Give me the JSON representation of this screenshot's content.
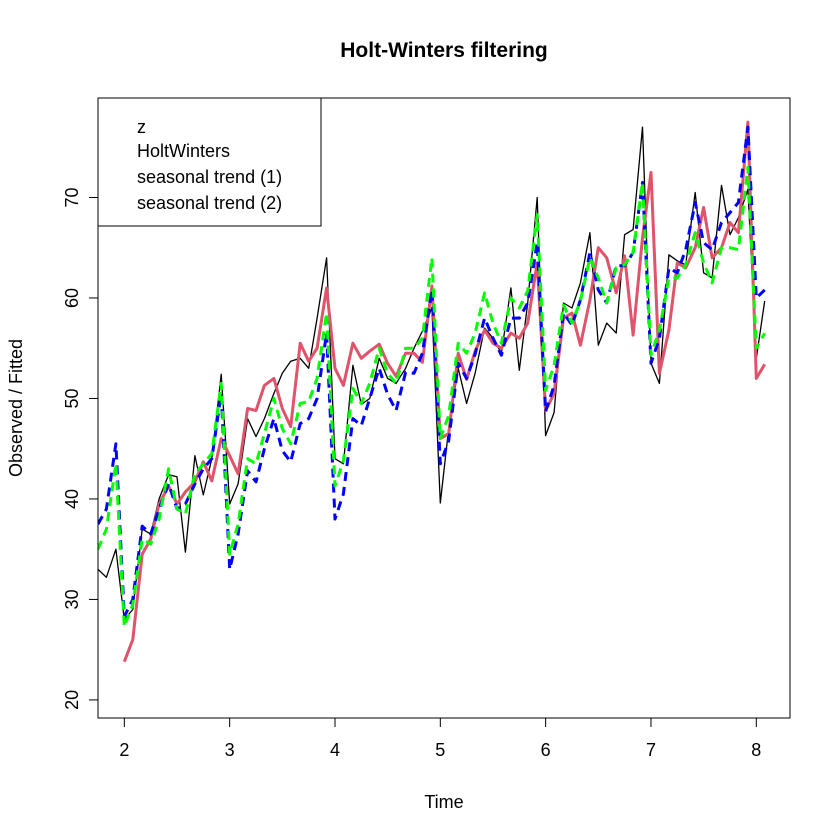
{
  "chart_data": {
    "type": "line",
    "title": "Holt-Winters filtering",
    "xlabel": "Time",
    "ylabel": "Observed / Fitted",
    "xlim": [
      1.75,
      8.32
    ],
    "ylim": [
      18.2,
      79.9
    ],
    "xticks": [
      2,
      3,
      4,
      5,
      6,
      7,
      8
    ],
    "yticks": [
      20,
      30,
      40,
      50,
      60,
      70
    ],
    "grid": false,
    "legend_position": "top-left",
    "legend": [
      "z",
      "HoltWinters",
      "seasonal trend (1)",
      "seasonal trend (2)"
    ],
    "series": [
      {
        "name": "z",
        "color": "#000000",
        "style": "solid",
        "width": 1.3,
        "x": [
          1.75,
          1.83,
          1.92,
          2.0,
          2.08,
          2.17,
          2.25,
          2.33,
          2.42,
          2.5,
          2.58,
          2.67,
          2.75,
          2.83,
          2.92,
          3.0,
          3.08,
          3.17,
          3.25,
          3.33,
          3.42,
          3.5,
          3.58,
          3.67,
          3.75,
          3.83,
          3.92,
          4.0,
          4.08,
          4.17,
          4.25,
          4.33,
          4.42,
          4.5,
          4.58,
          4.67,
          4.75,
          4.83,
          4.92,
          5.0,
          5.08,
          5.17,
          5.25,
          5.33,
          5.42,
          5.5,
          5.58,
          5.67,
          5.75,
          5.83,
          5.92,
          6.0,
          6.08,
          6.17,
          6.25,
          6.33,
          6.42,
          6.5,
          6.58,
          6.67,
          6.75,
          6.83,
          6.92,
          7.0,
          7.08,
          7.17,
          7.25,
          7.33,
          7.42,
          7.5,
          7.58,
          7.67,
          7.75,
          7.83,
          7.92,
          8.0,
          8.08
        ],
        "y": [
          33.0,
          32.2,
          35.0,
          28.0,
          29.0,
          37.0,
          36.5,
          40.0,
          42.4,
          42.2,
          34.7,
          44.3,
          40.4,
          44.0,
          52.4,
          39.5,
          41.5,
          48.0,
          46.2,
          48.0,
          50.5,
          52.5,
          53.7,
          54.0,
          53.0,
          58.0,
          64.0,
          44.0,
          43.5,
          53.3,
          49.4,
          50.0,
          54.0,
          52.0,
          51.5,
          53.0,
          55.0,
          56.7,
          59.0,
          39.6,
          47.0,
          53.0,
          49.5,
          52.5,
          57.0,
          56.0,
          54.5,
          61.0,
          52.8,
          59.5,
          70.0,
          46.3,
          48.6,
          59.5,
          59.0,
          61.5,
          66.5,
          55.3,
          57.5,
          56.5,
          66.3,
          66.8,
          77.0,
          53.5,
          51.5,
          64.3,
          63.7,
          63.3,
          70.5,
          62.5,
          62.0,
          71.2,
          66.3,
          68.0,
          70.8,
          54.0,
          59.7
        ]
      },
      {
        "name": "HoltWinters",
        "color": "#DF536B",
        "style": "solid",
        "width": 3,
        "x": [
          2.0,
          2.08,
          2.17,
          2.25,
          2.33,
          2.42,
          2.5,
          2.58,
          2.67,
          2.75,
          2.83,
          2.92,
          3.0,
          3.08,
          3.17,
          3.25,
          3.33,
          3.42,
          3.5,
          3.58,
          3.67,
          3.75,
          3.83,
          3.92,
          4.0,
          4.08,
          4.17,
          4.25,
          4.33,
          4.42,
          4.5,
          4.58,
          4.67,
          4.75,
          4.83,
          4.92,
          5.0,
          5.08,
          5.17,
          5.25,
          5.33,
          5.42,
          5.5,
          5.58,
          5.67,
          5.75,
          5.83,
          5.92,
          6.0,
          6.08,
          6.17,
          6.25,
          6.33,
          6.42,
          6.5,
          6.58,
          6.67,
          6.75,
          6.83,
          6.92,
          7.0,
          7.08,
          7.17,
          7.25,
          7.33,
          7.42,
          7.5,
          7.58,
          7.67,
          7.75,
          7.83,
          7.92,
          8.0,
          8.08
        ],
        "y": [
          23.8,
          26.0,
          34.5,
          36.0,
          39.5,
          41.3,
          39.5,
          40.7,
          41.7,
          43.7,
          41.8,
          46.0,
          44.3,
          42.5,
          49.0,
          48.8,
          51.3,
          52.0,
          49.0,
          47.2,
          55.5,
          53.7,
          55.0,
          61.0,
          53.0,
          51.3,
          55.5,
          54.0,
          54.7,
          55.4,
          53.5,
          52.2,
          54.5,
          54.5,
          53.6,
          61.2,
          46.0,
          46.5,
          54.5,
          51.9,
          54.7,
          56.8,
          55.5,
          55.0,
          56.5,
          56.0,
          57.5,
          63.5,
          48.8,
          50.5,
          58.0,
          58.5,
          55.3,
          59.8,
          65.0,
          64.0,
          60.5,
          64.2,
          56.3,
          66.0,
          72.5,
          52.5,
          56.8,
          63.5,
          63.0,
          65.0,
          69.0,
          64.0,
          65.0,
          67.5,
          66.5,
          77.5,
          52.0,
          53.4
        ]
      },
      {
        "name": "seasonal trend (1)",
        "color": "#0000FF",
        "style": "dashed",
        "width": 3,
        "x": [
          1.75,
          1.83,
          1.92,
          2.0,
          2.08,
          2.17,
          2.25,
          2.33,
          2.42,
          2.5,
          2.58,
          2.67,
          2.75,
          2.83,
          2.92,
          3.0,
          3.08,
          3.17,
          3.25,
          3.33,
          3.42,
          3.5,
          3.58,
          3.67,
          3.75,
          3.83,
          3.92,
          4.0,
          4.08,
          4.17,
          4.25,
          4.33,
          4.42,
          4.5,
          4.58,
          4.67,
          4.75,
          4.83,
          4.92,
          5.0,
          5.08,
          5.17,
          5.25,
          5.33,
          5.42,
          5.5,
          5.58,
          5.67,
          5.75,
          5.83,
          5.92,
          6.0,
          6.08,
          6.17,
          6.25,
          6.33,
          6.42,
          6.5,
          6.58,
          6.67,
          6.75,
          6.83,
          6.92,
          7.0,
          7.08,
          7.17,
          7.25,
          7.33,
          7.42,
          7.5,
          7.58,
          7.67,
          7.75,
          7.83,
          7.92,
          8.0,
          8.08
        ],
        "y": [
          37.5,
          39.0,
          45.5,
          28.3,
          30.0,
          37.3,
          36.5,
          39.0,
          41.5,
          39.0,
          39.5,
          41.5,
          43.0,
          44.0,
          50.5,
          33.0,
          36.5,
          42.8,
          41.7,
          45.0,
          48.0,
          44.8,
          43.7,
          47.5,
          48.0,
          50.0,
          56.5,
          38.0,
          40.5,
          48.0,
          47.3,
          50.0,
          53.0,
          50.4,
          48.8,
          52.6,
          52.5,
          54.5,
          60.8,
          43.5,
          45.8,
          53.5,
          52.0,
          54.4,
          58.0,
          56.0,
          54.3,
          58.0,
          58.0,
          59.5,
          65.5,
          48.7,
          51.3,
          58.5,
          57.3,
          59.8,
          64.5,
          60.8,
          59.5,
          63.2,
          63.2,
          64.5,
          71.5,
          53.5,
          56.0,
          63.0,
          62.5,
          64.8,
          69.5,
          65.5,
          64.8,
          67.5,
          68.5,
          69.5,
          77.0,
          60.0,
          60.8
        ]
      },
      {
        "name": "seasonal trend (2)",
        "color": "#00FF00",
        "style": "dashed",
        "width": 3,
        "x": [
          1.75,
          1.83,
          1.92,
          2.0,
          2.08,
          2.17,
          2.25,
          2.33,
          2.42,
          2.5,
          2.58,
          2.67,
          2.75,
          2.83,
          2.92,
          3.0,
          3.08,
          3.17,
          3.25,
          3.33,
          3.42,
          3.5,
          3.58,
          3.67,
          3.75,
          3.83,
          3.92,
          4.0,
          4.08,
          4.17,
          4.25,
          4.33,
          4.42,
          4.5,
          4.58,
          4.67,
          4.75,
          4.83,
          4.92,
          5.0,
          5.08,
          5.17,
          5.25,
          5.33,
          5.42,
          5.5,
          5.58,
          5.67,
          5.75,
          5.83,
          5.92,
          6.0,
          6.08,
          6.17,
          6.25,
          6.33,
          6.42,
          6.5,
          6.58,
          6.67,
          6.75,
          6.83,
          6.92,
          7.0,
          7.08,
          7.17,
          7.25,
          7.33,
          7.42,
          7.5,
          7.58,
          7.67,
          7.75,
          7.83,
          7.92,
          8.0,
          8.08
        ],
        "y": [
          35.0,
          37.0,
          43.5,
          27.3,
          29.5,
          36.0,
          35.5,
          38.0,
          43.0,
          39.0,
          38.5,
          42.5,
          43.5,
          44.5,
          51.5,
          34.5,
          37.5,
          44.0,
          43.5,
          46.5,
          50.0,
          47.0,
          45.5,
          49.5,
          49.7,
          52.0,
          58.5,
          41.3,
          43.8,
          51.0,
          49.5,
          51.5,
          55.0,
          52.5,
          51.5,
          55.0,
          55.0,
          56.0,
          64.0,
          46.0,
          48.3,
          55.5,
          54.5,
          56.5,
          60.5,
          57.5,
          55.5,
          60.0,
          59.0,
          60.7,
          68.3,
          50.8,
          53.3,
          59.3,
          57.5,
          59.7,
          64.0,
          62.0,
          59.5,
          63.0,
          63.3,
          64.5,
          71.5,
          54.3,
          56.8,
          62.0,
          62.0,
          63.3,
          66.5,
          63.5,
          61.5,
          65.0,
          65.0,
          64.8,
          73.0,
          55.0,
          56.5
        ]
      }
    ]
  }
}
